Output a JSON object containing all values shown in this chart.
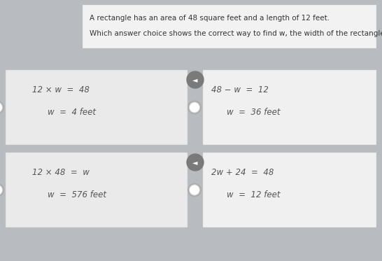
{
  "background_color": "#b8bcc0",
  "question_box_color": "#f2f2f2",
  "card_color_left": "#eaeaea",
  "card_color_right": "#f0f0f0",
  "question_line1": "A rectangle has an area of 48 square feet and a length of 12 feet.",
  "question_line2": "Which answer choice shows the correct way to find w, the width of the rectangle?",
  "cards": [
    {
      "line1": "12 × w  =  48",
      "line2": "w  =  4 feet",
      "has_speaker": true,
      "has_radio": true,
      "col": 0,
      "row": 0
    },
    {
      "line1": "48 − w  =  12",
      "line2": "w  =  36 feet",
      "has_speaker": false,
      "has_radio": true,
      "col": 1,
      "row": 0
    },
    {
      "line1": "12 × 48  =  w",
      "line2": "w  =  576 feet",
      "has_speaker": true,
      "has_radio": true,
      "col": 0,
      "row": 1
    },
    {
      "line1": "2w + 24  =  48",
      "line2": "w  =  12 feet",
      "has_speaker": false,
      "has_radio": true,
      "col": 1,
      "row": 1
    }
  ],
  "title_fontsize": 7.5,
  "card_fontsize": 8.5,
  "figsize": [
    5.46,
    3.73
  ],
  "dpi": 100
}
